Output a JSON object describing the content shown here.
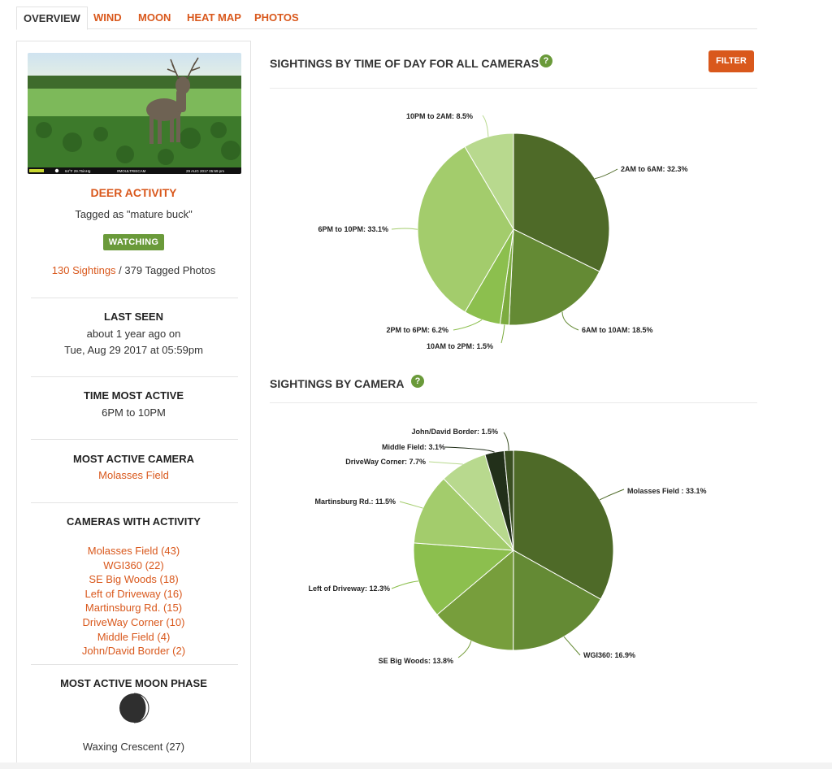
{
  "tabs": [
    {
      "label": "OVERVIEW",
      "active": true
    },
    {
      "label": "WIND",
      "active": false
    },
    {
      "label": "MOON",
      "active": false
    },
    {
      "label": "HEAT MAP",
      "active": false
    },
    {
      "label": "PHOTOS",
      "active": false
    }
  ],
  "photo": {
    "caption_left": "64°F 29.75inHg",
    "caption_mid": "#MOULTRIECAM",
    "caption_right": "29 AUG 2017 05:59 pm",
    "brand": "MOULTRIE"
  },
  "deer": {
    "title": "DEER ACTIVITY",
    "tagged": "Tagged as \"mature buck\"",
    "status": "WATCHING",
    "sightings_link": "130 Sightings",
    "tagged_photos": " / 379 Tagged Photos"
  },
  "last_seen": {
    "title": "LAST SEEN",
    "line1": "about 1 year ago on",
    "line2": "Tue, Aug 29 2017 at 05:59pm"
  },
  "time_most_active": {
    "title": "TIME MOST ACTIVE",
    "value": "6PM to 10PM"
  },
  "most_active_camera": {
    "title": "MOST ACTIVE CAMERA",
    "value": "Molasses Field"
  },
  "cameras_with_activity": {
    "title": "CAMERAS WITH ACTIVITY",
    "items": [
      "Molasses Field (43)",
      "WGI360 (22)",
      "SE Big Woods (18)",
      "Left of Driveway (16)",
      "Martinsburg Rd. (15)",
      "DriveWay Corner (10)",
      "Middle Field (4)",
      "John/David Border (2)"
    ]
  },
  "moon_phase": {
    "title": "MOST ACTIVE MOON PHASE",
    "value": "Waxing Crescent (27)",
    "icon": "moon-waxing-crescent-icon"
  },
  "filter_label": "FILTER",
  "help_glyph": "?",
  "colors": {
    "accent": "#d9581c",
    "green_badge": "#6a9a3a"
  },
  "chart_data": [
    {
      "type": "pie",
      "title": "SIGHTINGS BY TIME OF DAY FOR ALL CAMERAS",
      "labels": [
        "2AM to 6AM",
        "6AM to 10AM",
        "10AM to 2PM",
        "2PM to 6PM",
        "6PM to 10PM",
        "10PM to 2AM"
      ],
      "values": [
        32.3,
        18.5,
        1.5,
        6.2,
        33.1,
        8.5
      ],
      "label_texts": [
        "2AM to 6AM: 32.3%",
        "6AM to 10AM: 18.5%",
        "10AM to 2PM: 1.5%",
        "2PM to 6PM: 6.2%",
        "6PM to 10PM: 33.1%",
        "10PM to 2AM: 8.5%"
      ],
      "colors": [
        "#4e6a28",
        "#648a34",
        "#7cab3f",
        "#8cbf4e",
        "#a3cc6c",
        "#b8d98e"
      ]
    },
    {
      "type": "pie",
      "title": "SIGHTINGS BY CAMERA",
      "labels": [
        "Molasses Field ",
        "WGI360",
        "SE Big Woods",
        "Left of Driveway",
        "Martinsburg Rd.",
        "DriveWay Corner",
        "Middle Field",
        "John/David Border"
      ],
      "values": [
        33.1,
        16.9,
        13.8,
        12.3,
        11.5,
        7.7,
        3.1,
        1.5
      ],
      "label_texts": [
        "Molasses Field : 33.1%",
        "WGI360: 16.9%",
        "SE Big Woods: 13.8%",
        "Left of Driveway: 12.3%",
        "Martinsburg Rd.: 11.5%",
        "DriveWay Corner: 7.7%",
        "Middle Field: 3.1%",
        "John/David Border: 1.5%"
      ],
      "colors": [
        "#4e6a28",
        "#648a34",
        "#779e3c",
        "#8cbf4e",
        "#a3cc6c",
        "#b8d98e",
        "#22301a",
        "#3a4f22"
      ]
    }
  ]
}
